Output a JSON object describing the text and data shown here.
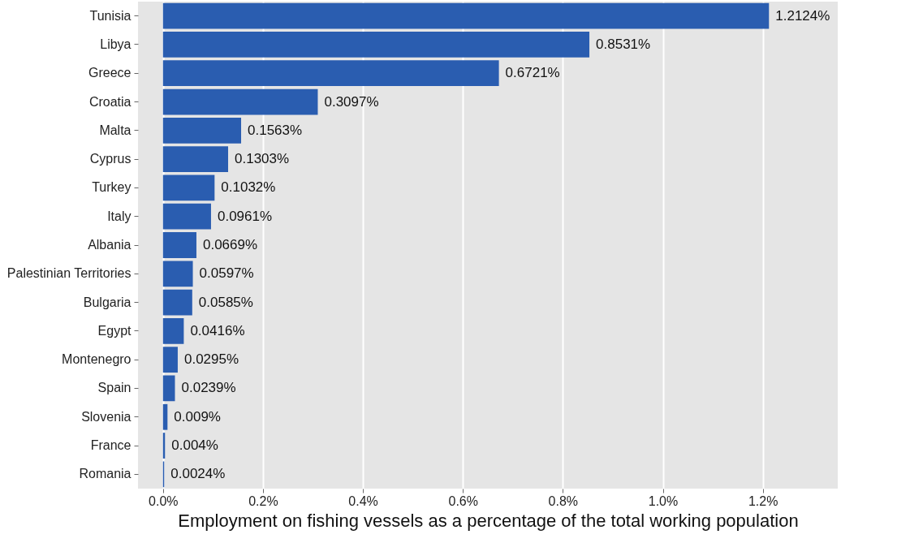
{
  "chart_data": {
    "type": "bar",
    "orientation": "horizontal",
    "xlabel": "Employment on fishing vessels as a percentage of the total working population",
    "categories": [
      "Tunisia",
      "Libya",
      "Greece",
      "Croatia",
      "Malta",
      "Cyprus",
      "Turkey",
      "Italy",
      "Albania",
      "Palestinian Territories",
      "Bulgaria",
      "Egypt",
      "Montenegro",
      "Spain",
      "Slovenia",
      "France",
      "Romania"
    ],
    "values": [
      1.2124,
      0.8531,
      0.6721,
      0.3097,
      0.1563,
      0.1303,
      0.1032,
      0.0961,
      0.0669,
      0.0597,
      0.0585,
      0.0416,
      0.0295,
      0.0239,
      0.009,
      0.004,
      0.0024
    ],
    "value_labels": [
      "1.2124%",
      "0.8531%",
      "0.6721%",
      "0.3097%",
      "0.1563%",
      "0.1303%",
      "0.1032%",
      "0.0961%",
      "0.0669%",
      "0.0597%",
      "0.0585%",
      "0.0416%",
      "0.0295%",
      "0.0239%",
      "0.009%",
      "0.004%",
      "0.0024%"
    ],
    "color": "#2a5db0",
    "xlim": [
      -0.05,
      1.35
    ],
    "xticks": [
      {
        "value": 0,
        "label": "0.0%"
      },
      {
        "value": 0.2,
        "label": "0.2%"
      },
      {
        "value": 0.4,
        "label": "0.4%"
      },
      {
        "value": 0.6,
        "label": "0.6%"
      },
      {
        "value": 0.8,
        "label": "0.8%"
      },
      {
        "value": 1.0,
        "label": "1.0%"
      },
      {
        "value": 1.2,
        "label": "1.2%"
      }
    ],
    "grid": "x"
  }
}
